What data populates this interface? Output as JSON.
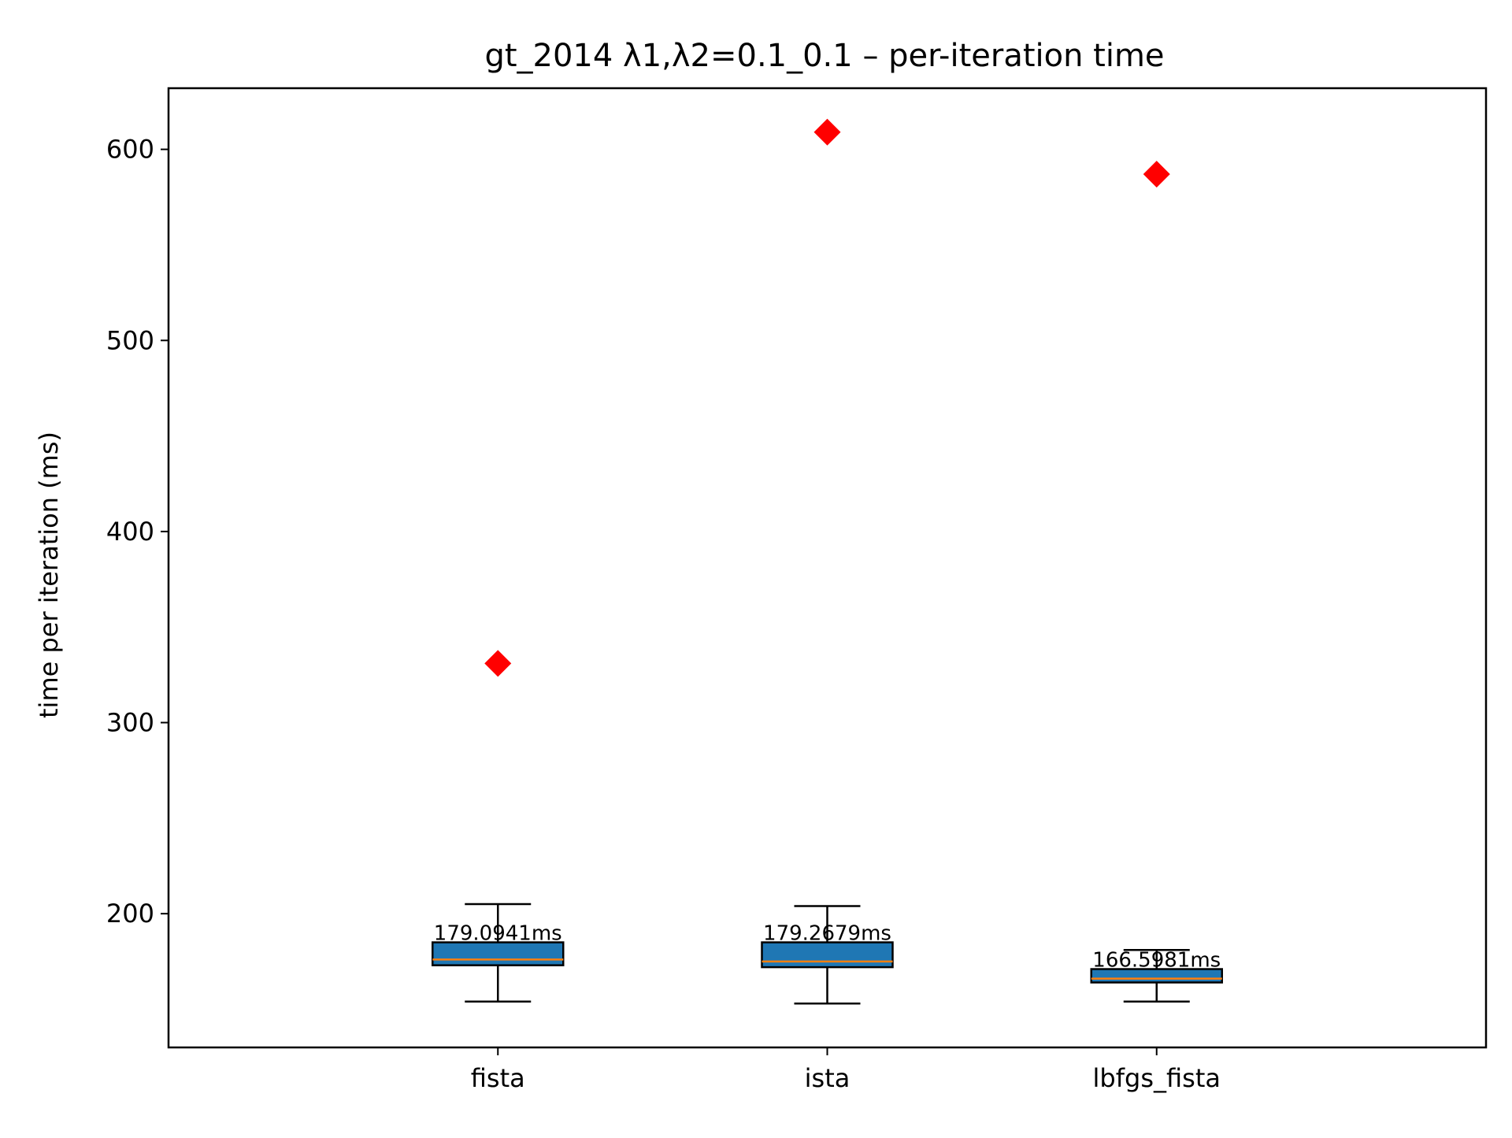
{
  "chart_data": {
    "type": "boxplot",
    "title": "gt_2014   λ1,λ2=0.1_0.1  –  per-iteration time",
    "xlabel": "",
    "ylabel": "time per iteration (ms)",
    "ylim": [
      130,
      632
    ],
    "yticks": [
      200,
      300,
      400,
      500,
      600
    ],
    "grid": false,
    "legend": "none",
    "categories": [
      "fista",
      "ista",
      "lbfgs_fista"
    ],
    "boxes": [
      {
        "category": "fista",
        "whisker_low": 154,
        "q1": 173,
        "median": 176,
        "q3": 185,
        "whisker_high": 205,
        "outliers": [
          331
        ],
        "annotation": "179.0941ms"
      },
      {
        "category": "ista",
        "whisker_low": 153,
        "q1": 172,
        "median": 175,
        "q3": 185,
        "whisker_high": 204,
        "outliers": [
          609
        ],
        "annotation": "179.2679ms"
      },
      {
        "category": "lbfgs_fista",
        "whisker_low": 154,
        "q1": 164,
        "median": 166,
        "q3": 171,
        "whisker_high": 181,
        "outliers": [
          587
        ],
        "annotation": "166.5981ms"
      }
    ],
    "colors": {
      "box_fill": "#1f77b4",
      "median": "#ff7f0e",
      "outlier": "#ff0000",
      "lines": "#000000"
    }
  }
}
